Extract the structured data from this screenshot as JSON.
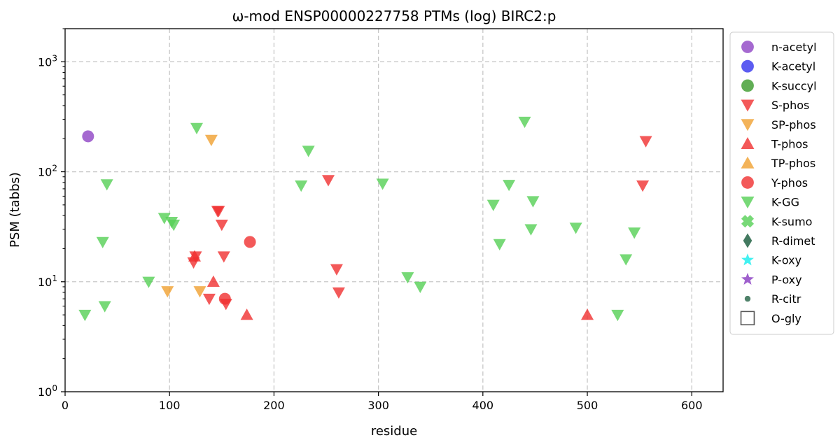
{
  "chart_data": {
    "type": "scatter",
    "title": "ω-mod ENSP00000227758 PTMs (log) BIRC2:p",
    "xlabel": "residue",
    "ylabel": "PSM (tabbs)",
    "xlim": [
      0,
      630
    ],
    "ylim": [
      1,
      2000
    ],
    "yscale": "log",
    "x_ticks": [
      0,
      100,
      200,
      300,
      400,
      500,
      600
    ],
    "y_ticks": [
      {
        "value": 1,
        "base": "10",
        "exp": "0"
      },
      {
        "value": 10,
        "base": "10",
        "exp": "1"
      },
      {
        "value": 100,
        "base": "10",
        "exp": "2"
      },
      {
        "value": 1000,
        "base": "10",
        "exp": "3"
      }
    ],
    "grid": true,
    "legend_position": "outside-right",
    "series": [
      {
        "name": "n-acetyl",
        "marker": "circle",
        "color": "#8e44c4",
        "points": [
          [
            22,
            210
          ]
        ]
      },
      {
        "name": "K-acetyl",
        "marker": "circle",
        "color": "#3333ee",
        "points": []
      },
      {
        "name": "K-succyl",
        "marker": "circle",
        "color": "#3a9a2a",
        "points": []
      },
      {
        "name": "S-phos",
        "marker": "triangle-down",
        "color": "#f03030",
        "points": [
          [
            123,
            15
          ],
          [
            125,
            17
          ],
          [
            138,
            7
          ],
          [
            146,
            44
          ],
          [
            147,
            44
          ],
          [
            150,
            33
          ],
          [
            152,
            17
          ],
          [
            154,
            6.3
          ],
          [
            252,
            84
          ],
          [
            260,
            13
          ],
          [
            262,
            8
          ],
          [
            553,
            75
          ],
          [
            556,
            190
          ]
        ]
      },
      {
        "name": "SP-phos",
        "marker": "triangle-down",
        "color": "#f0a030",
        "points": [
          [
            98,
            8.2
          ],
          [
            129,
            8.2
          ],
          [
            140,
            195
          ]
        ]
      },
      {
        "name": "T-phos",
        "marker": "triangle-up",
        "color": "#f03030",
        "points": [
          [
            124,
            17
          ],
          [
            142,
            10
          ],
          [
            174,
            5
          ],
          [
            500,
            5
          ]
        ]
      },
      {
        "name": "TP-phos",
        "marker": "triangle-up",
        "color": "#f0a030",
        "points": []
      },
      {
        "name": "Y-phos",
        "marker": "circle",
        "color": "#f03030",
        "points": [
          [
            153,
            7
          ],
          [
            177,
            23
          ]
        ]
      },
      {
        "name": "K-GG",
        "marker": "triangle-down",
        "color": "#55d055",
        "points": [
          [
            19,
            5
          ],
          [
            36,
            23
          ],
          [
            38,
            6
          ],
          [
            40,
            77
          ],
          [
            80,
            10
          ],
          [
            95,
            38
          ],
          [
            102,
            35
          ],
          [
            104,
            33
          ],
          [
            126,
            250
          ],
          [
            233,
            155
          ],
          [
            226,
            75
          ],
          [
            304,
            78
          ],
          [
            328,
            11
          ],
          [
            340,
            9
          ],
          [
            410,
            50
          ],
          [
            416,
            22
          ],
          [
            425,
            76
          ],
          [
            440,
            285
          ],
          [
            446,
            30
          ],
          [
            448,
            54
          ],
          [
            489,
            31
          ],
          [
            529,
            5
          ],
          [
            537,
            16
          ],
          [
            545,
            28
          ]
        ]
      },
      {
        "name": "K-sumo",
        "marker": "x",
        "color": "#55d055",
        "points": []
      },
      {
        "name": "R-dimet",
        "marker": "diamond",
        "color": "#2f6b4f",
        "points": []
      },
      {
        "name": "K-oxy",
        "marker": "star",
        "color": "#22eeee",
        "points": []
      },
      {
        "name": "P-oxy",
        "marker": "star",
        "color": "#8e44c4",
        "points": []
      },
      {
        "name": "R-citr",
        "marker": "small-circle",
        "color": "#2f6b4f",
        "points": []
      },
      {
        "name": "O-gly",
        "marker": "square-open",
        "color": "#555555",
        "points": []
      }
    ]
  }
}
